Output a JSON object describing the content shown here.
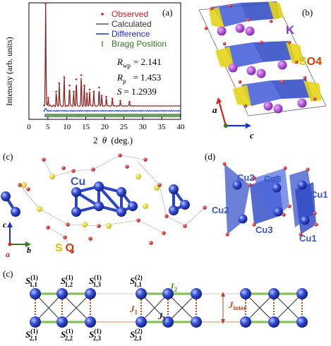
{
  "figure": {
    "panels": {
      "a": {
        "label": "(a)",
        "ylabel": "Intensity (arb. units)",
        "xlabel_theta": "θ",
        "xlabel_num": "2",
        "xlabel_unit": "(deg.)",
        "legend": {
          "observed": "Observed",
          "calculated": "Calculated",
          "difference": "Difference",
          "bragg": "Bragg Position"
        },
        "stats": {
          "rwp_label": "R",
          "rwp_sub": "wp",
          "rwp_value": "= 2.141",
          "rp_label": "R",
          "rp_sub": "p",
          "rp_value": "= 1.453",
          "s_label": "S",
          "s_value": "= 1.2939"
        },
        "colors": {
          "observed": "#d42020",
          "calculated": "#333333",
          "difference": "#1a2fe0",
          "bragg": "#2e7d1e"
        }
      },
      "b": {
        "label": "(b)",
        "k_label": "K",
        "s_label": "S",
        "o4_label": "O4",
        "axis_a": "a",
        "axis_c": "c"
      },
      "c1": {
        "label": "(c)",
        "cu_label": "Cu",
        "s_label": "S",
        "o_label": "O",
        "axis_c": "c",
        "axis_b": "b",
        "axis_a": "a"
      },
      "d": {
        "label": "(d)",
        "atoms": [
          "Cu2",
          "Cu3",
          "Cu1",
          "Cu2",
          "Cu3",
          "Cu1"
        ]
      },
      "c2": {
        "label": "(c)",
        "top_labels": [
          {
            "s": "S",
            "sub": "1,1",
            "sup": "(1)"
          },
          {
            "s": "S",
            "sub": "1,2",
            "sup": "(1)"
          },
          {
            "s": "S",
            "sub": "1,3",
            "sup": "(1)"
          },
          {
            "s": "S",
            "sub": "1,1",
            "sup": "(2)"
          }
        ],
        "bottom_labels": [
          {
            "s": "S",
            "sub": "2,1",
            "sup": "(1)"
          },
          {
            "s": "S",
            "sub": "2,2",
            "sup": "(1)"
          },
          {
            "s": "S",
            "sub": "2,3",
            "sup": "(1)"
          },
          {
            "s": "S",
            "sub": "2,1",
            "sup": "(2)"
          }
        ],
        "j1": "J",
        "j1_sub": "1",
        "j2": "J",
        "j2_sub": "2",
        "j3": "J",
        "j3_sub": "3",
        "jinter": "J",
        "jinter_sub": "inter"
      }
    }
  },
  "chart_data": {
    "type": "scatter",
    "title": "",
    "xlabel": "2 θ (deg.)",
    "ylabel": "Intensity (arb. units)",
    "xlim": [
      0,
      40
    ],
    "xticks": [
      0,
      5,
      10,
      15,
      20,
      25,
      30,
      35,
      40
    ],
    "series": [
      {
        "name": "Observed",
        "x": [
          4.4,
          5.1,
          7.2,
          8.0,
          9.3,
          10.7,
          11.8,
          12.5,
          13.8,
          14.6,
          15.3,
          16.0,
          17.1,
          18.5,
          19.2,
          20.4,
          22.0,
          24.1,
          26.5
        ],
        "values": [
          1.0,
          0.08,
          0.14,
          0.22,
          0.28,
          0.2,
          0.14,
          0.26,
          0.3,
          0.2,
          0.12,
          0.16,
          0.14,
          0.18,
          0.1,
          0.09,
          0.07,
          0.05,
          0.04
        ]
      }
    ],
    "legend_position": "top-right",
    "grid": false
  }
}
